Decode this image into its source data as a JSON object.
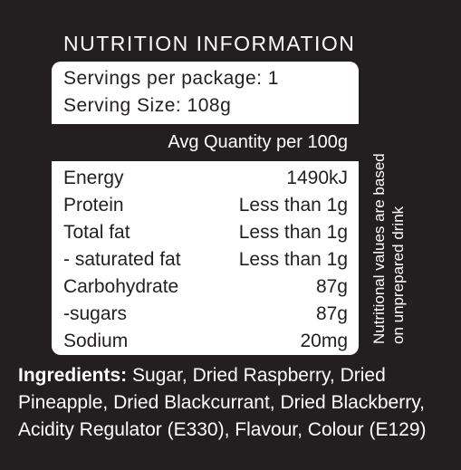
{
  "title": "NUTRITION INFORMATION",
  "servings_per_package": "Servings per package: 1",
  "serving_size": "Serving Size: 108g",
  "column_header": "Avg Quantity per 100g",
  "nutrients": [
    {
      "name": "Energy",
      "value": "1490kJ"
    },
    {
      "name": "Protein",
      "value": "Less than 1g"
    },
    {
      "name": "Total fat",
      "value": "Less than 1g"
    },
    {
      "name": "- saturated fat",
      "value": "Less than 1g"
    },
    {
      "name": "Carbohydrate",
      "value": "87g"
    },
    {
      "name": "-sugars",
      "value": "87g"
    },
    {
      "name": "Sodium",
      "value": "20mg"
    }
  ],
  "side_note": {
    "line1": "Nutritional values are based",
    "line2": "on unprepared drink"
  },
  "ingredients": {
    "label": "Ingredients:",
    "text": " Sugar, Dried Raspberry, Dried Pineapple, Dried Blackcurrant, Dried Blackberry, Acidity Regulator (E330), Flavour, Colour (E129)"
  }
}
